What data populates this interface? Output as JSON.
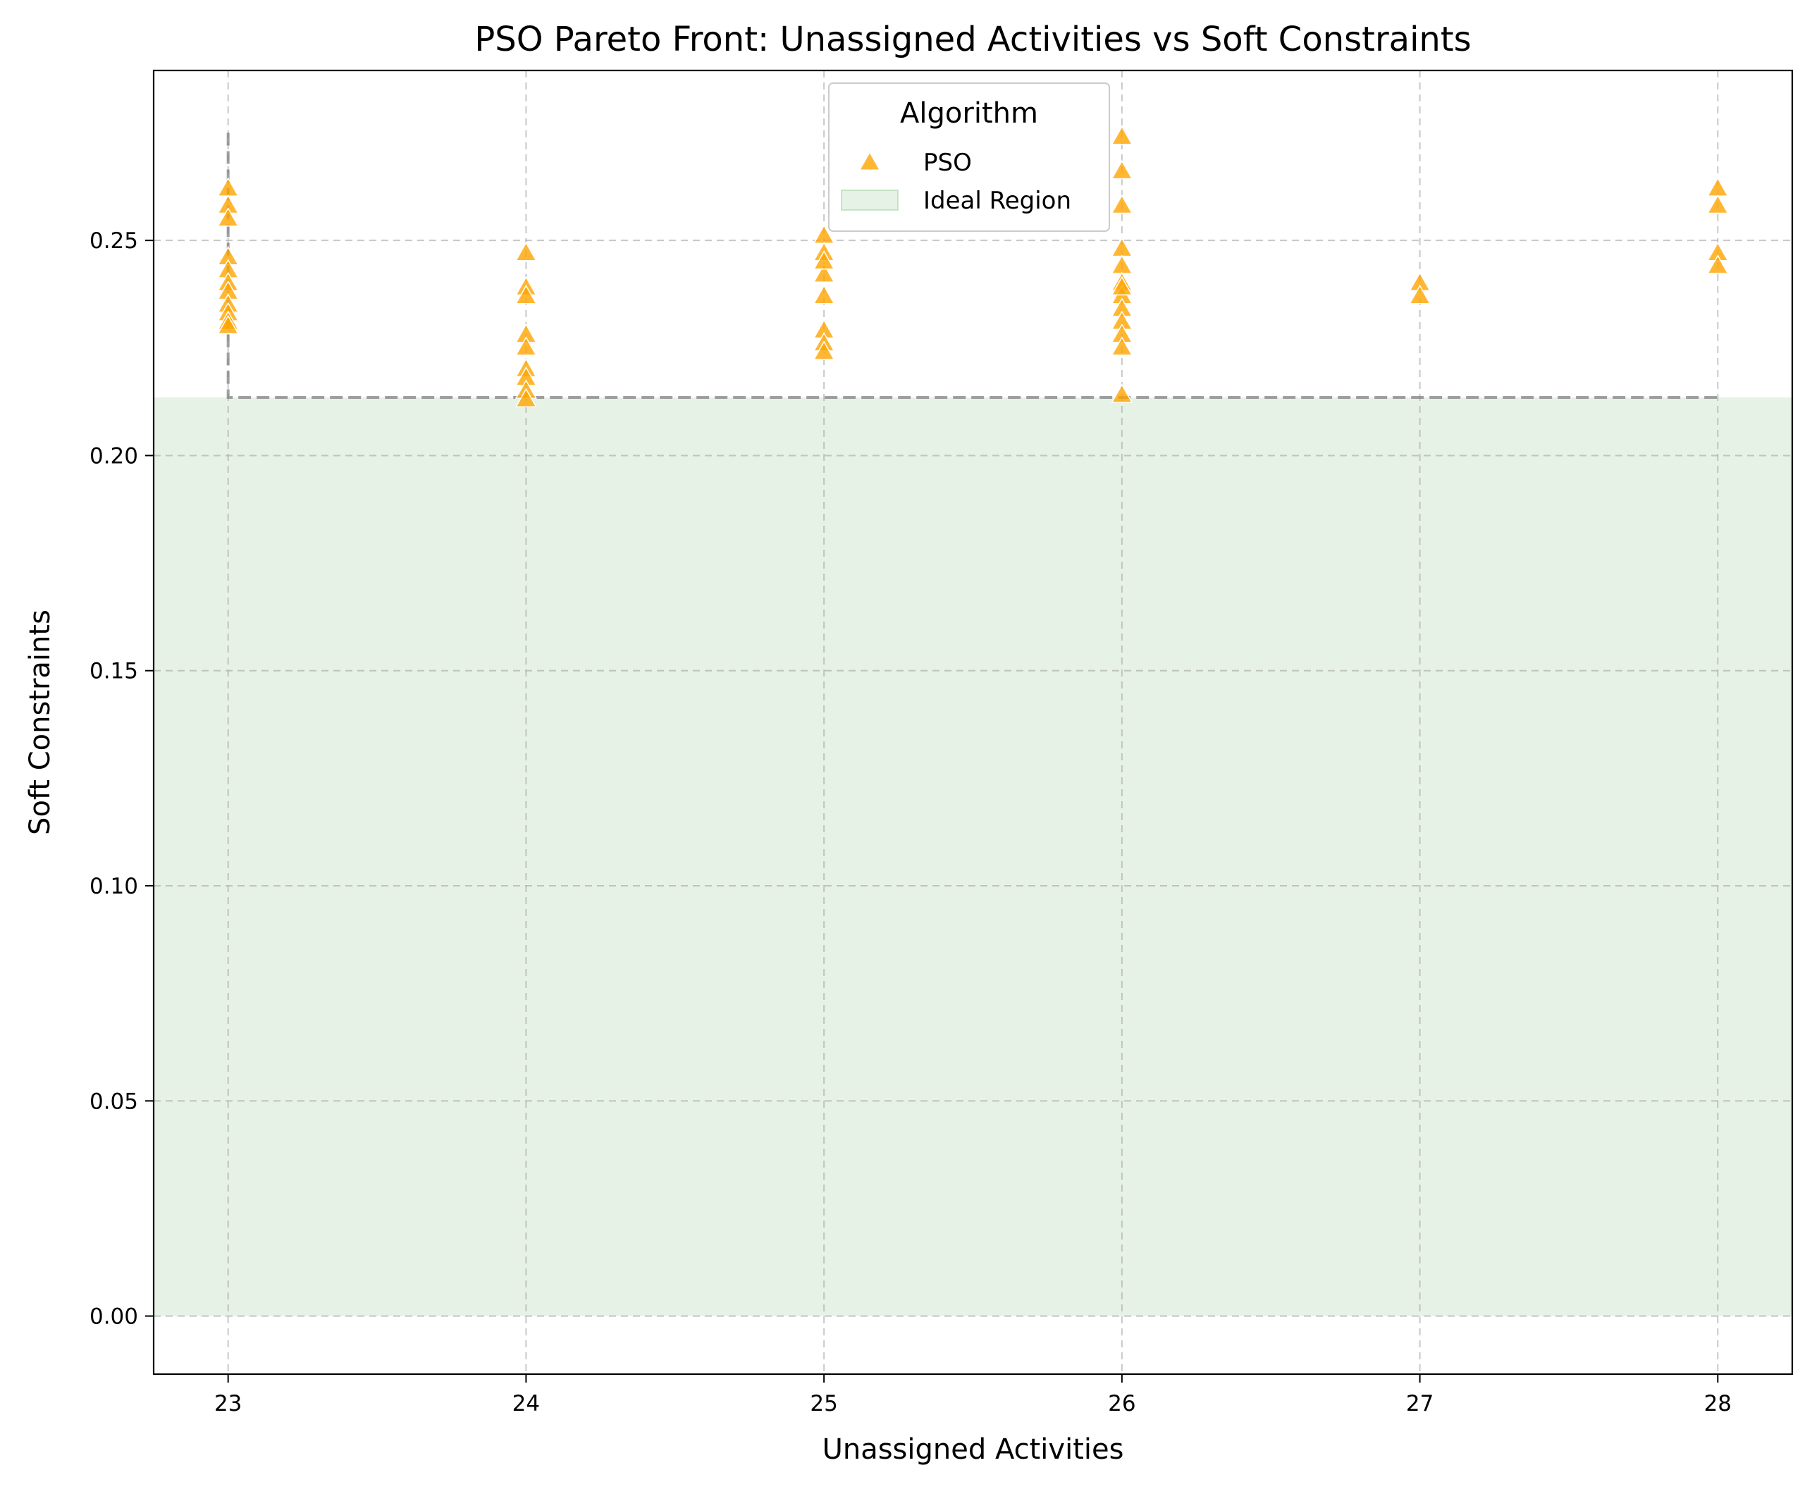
{
  "chart_data": {
    "type": "scatter",
    "title": "PSO Pareto Front: Unassigned Activities vs Soft Constraints",
    "xlabel": "Unassigned Activities",
    "ylabel": "Soft Constraints",
    "xlim": [
      22.75,
      28.25
    ],
    "ylim": [
      -0.0135,
      0.2895
    ],
    "xticks": [
      23,
      24,
      25,
      26,
      27,
      28
    ],
    "yticks": [
      0.0,
      0.05,
      0.1,
      0.15,
      0.2,
      0.25
    ],
    "ytick_labels": [
      "0.00",
      "0.05",
      "0.10",
      "0.15",
      "0.20",
      "0.25"
    ],
    "grid": true,
    "legend": {
      "title": "Algorithm",
      "placement": "top-center",
      "entries": [
        {
          "label": "PSO",
          "kind": "marker",
          "color": "#FFA500"
        },
        {
          "label": "Ideal Region",
          "kind": "area",
          "color": "#A8D5A8"
        }
      ]
    },
    "ideal_region": {
      "x_range": [
        22.75,
        28.25
      ],
      "y_range": [
        0,
        0.2135
      ],
      "color": "#A8D5A8"
    },
    "pareto_front": {
      "style": "dashed",
      "color": "#808080",
      "x": [
        23,
        23,
        28
      ],
      "y": [
        0.275,
        0.2135,
        0.2135
      ]
    },
    "series": [
      {
        "name": "PSO",
        "marker": "triangle",
        "color": "#FFA500",
        "x": [
          23,
          23,
          23,
          23,
          23,
          23,
          23,
          23,
          23,
          23,
          23,
          24,
          24,
          24,
          24,
          24,
          24,
          24,
          24,
          24,
          25,
          25,
          25,
          25,
          25,
          25,
          25,
          25,
          26,
          26,
          26,
          26,
          26,
          26,
          26,
          26,
          26,
          26,
          26,
          26,
          26,
          27,
          27,
          28,
          28,
          28,
          28
        ],
        "y": [
          0.262,
          0.258,
          0.255,
          0.246,
          0.243,
          0.24,
          0.238,
          0.235,
          0.233,
          0.231,
          0.23,
          0.247,
          0.239,
          0.228,
          0.225,
          0.22,
          0.218,
          0.215,
          0.213,
          0.237,
          0.251,
          0.247,
          0.242,
          0.237,
          0.229,
          0.226,
          0.224,
          0.245,
          0.274,
          0.266,
          0.258,
          0.248,
          0.244,
          0.24,
          0.237,
          0.234,
          0.231,
          0.228,
          0.225,
          0.214,
          0.239,
          0.24,
          0.237,
          0.262,
          0.258,
          0.247,
          0.244
        ]
      }
    ]
  }
}
